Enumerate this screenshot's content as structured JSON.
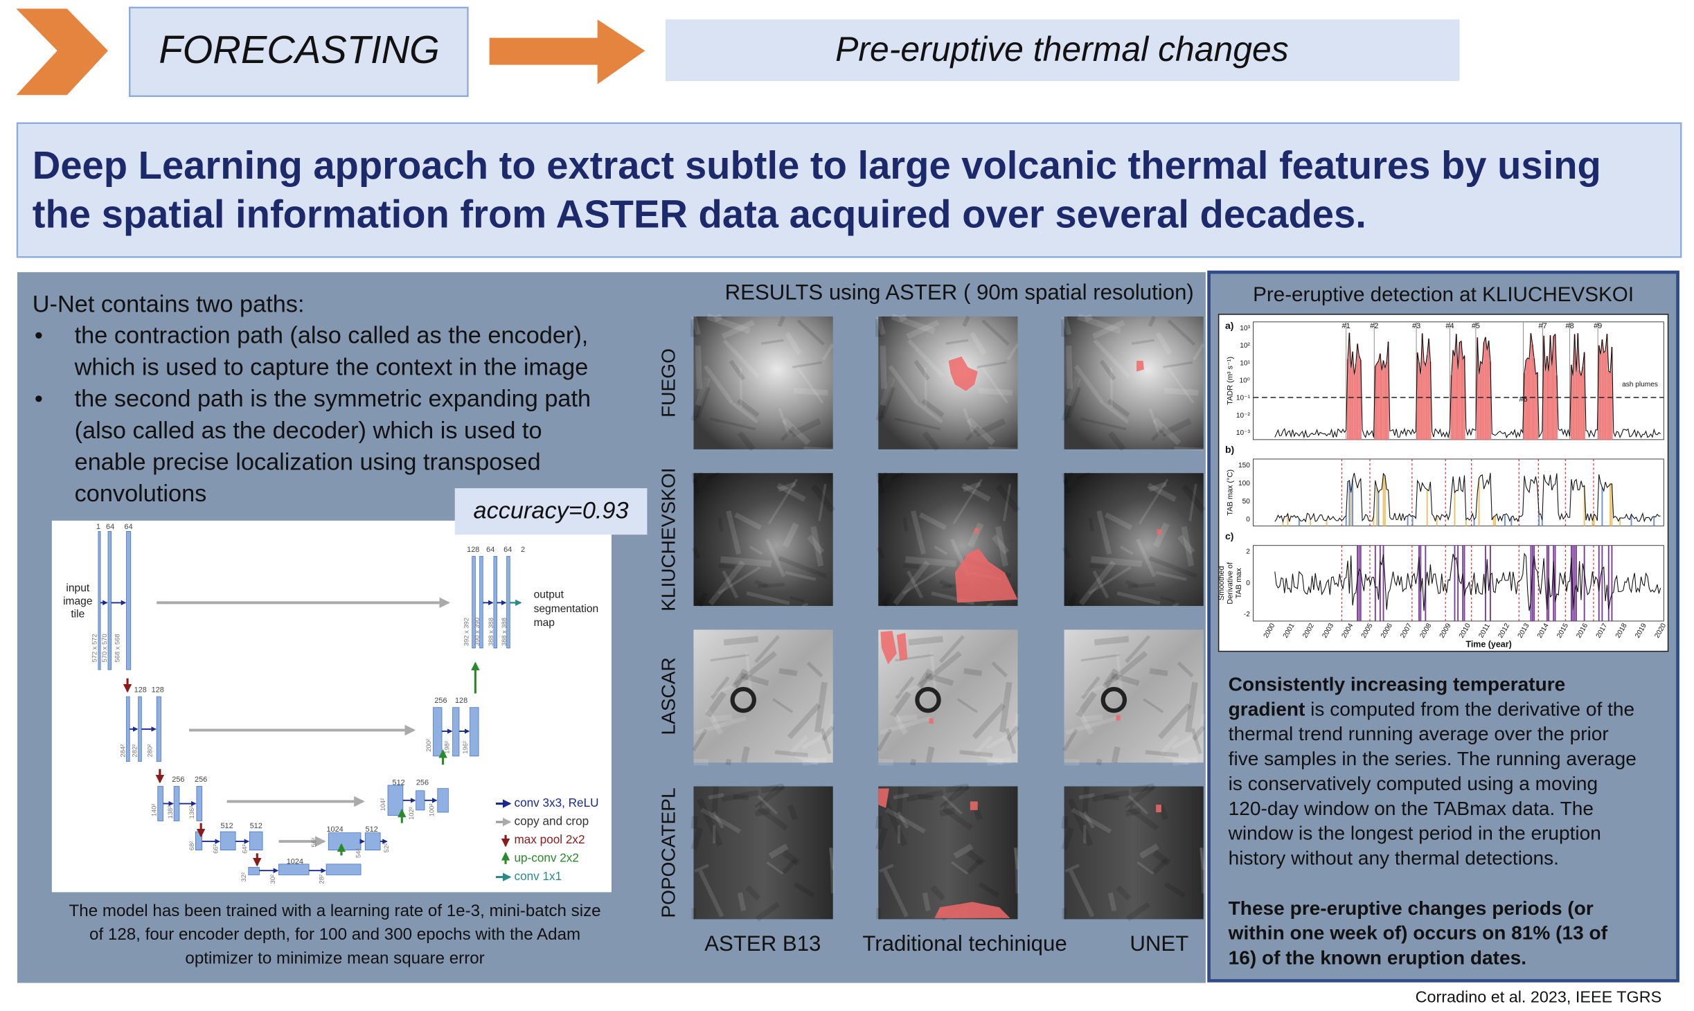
{
  "header": {
    "section": "FORECASTING",
    "topic": "Pre-eruptive thermal changes"
  },
  "title": {
    "lines": [
      "Deep Learning approach to extract subtle to large volcanic thermal features by using",
      "the spatial information from ASTER data acquired over several decades."
    ]
  },
  "unet": {
    "intro": "U-Net contains two paths:",
    "bullet": "•",
    "bullets": [
      [
        "the contraction path (also called as the encoder),",
        "which is used to capture the context in the image"
      ],
      [
        "the second path is the symmetric expanding path",
        "(also called as the decoder) which is used to",
        "enable precise localization using transposed",
        "convolutions"
      ]
    ],
    "accuracy": "accuracy=0.93",
    "diagram": {
      "input": [
        "input",
        "image",
        "tile"
      ],
      "output": [
        "output",
        "segmentation",
        "map"
      ],
      "channels": [
        "1",
        "64",
        "64",
        "128",
        "128",
        "256",
        "256",
        "512",
        "512",
        "1024",
        "1024",
        "512",
        "512",
        "256",
        "256",
        "128",
        "128",
        "64",
        "64",
        "2"
      ],
      "sizes": [
        "572 x 572",
        "570 x 570",
        "568 x 568",
        "284²",
        "282²",
        "280²",
        "140²",
        "138²",
        "136²",
        "68²",
        "66²",
        "64²",
        "32²",
        "30²",
        "28²",
        "56²",
        "54²",
        "52²",
        "104²",
        "102²",
        "100²",
        "200²",
        "198²",
        "196²",
        "392 x 392",
        "390 x 390",
        "388 x 388",
        "388 x 388"
      ],
      "legend": [
        "conv 3x3, ReLU",
        "copy and crop",
        "max pool 2x2",
        "up-conv 2x2",
        "conv 1x1"
      ]
    },
    "caption": [
      "The model has been trained with a learning rate of 1e-3, mini-batch size",
      "of 128, four encoder depth, for 100 and 300 epochs with the Adam",
      "optimizer to minimize mean square error"
    ]
  },
  "results": {
    "heading": "RESULTS using ASTER ( 90m spatial resolution)",
    "rows": [
      "FUEGO",
      "KLIUCHEVSKOI",
      "LASCAR",
      "POPOCATEPL"
    ],
    "columns": [
      "ASTER B13",
      "Traditional techinique",
      "UNET"
    ]
  },
  "detection": {
    "title": "Pre-eruptive detection at KLIUCHEVSKOI",
    "chart": {
      "panels": [
        "a)",
        "b)",
        "c)"
      ],
      "ylabels": [
        [
          "TADR (m³ s⁻¹)"
        ],
        [
          "TAB max (°C)"
        ],
        [
          "Smoothed",
          "Derivative of",
          "TAB max"
        ]
      ],
      "yticks": [
        [
          "10³",
          "10²",
          "10¹",
          "10⁰",
          "10⁻¹",
          "10⁻²",
          "10⁻³"
        ],
        [
          "150",
          "100",
          "50",
          "0"
        ],
        [
          "2",
          "0",
          "-2"
        ]
      ],
      "years": [
        "2000",
        "2001",
        "2002",
        "2003",
        "2004",
        "2005",
        "2006",
        "2007",
        "2008",
        "2009",
        "2010",
        "2011",
        "2012",
        "2013",
        "2014",
        "2015",
        "2016",
        "2017",
        "2018",
        "2019",
        "2020"
      ],
      "xlabel": "Time (year)",
      "events": [
        "#1",
        "#2",
        "#3",
        "#4",
        "#5",
        "#6",
        "#7",
        "#8",
        "#9"
      ],
      "annotation": "ash plumes"
    },
    "paragraph": [
      {
        "bold": "Consistently increasing temperature"
      },
      {
        "bold": "gradient",
        "text": " is computed from the derivative of the"
      },
      {
        "text": "thermal trend running average over the prior"
      },
      {
        "text": "five samples in the series. The running average"
      },
      {
        "text": "is conservatively computed using a moving"
      },
      {
        "text": "120-day window on the TABmax data. The"
      },
      {
        "text": "window is the longest period in the eruption"
      },
      {
        "text": "history without any thermal detections."
      }
    ],
    "conclusion": [
      "These pre-eruptive changes periods (or",
      "within one week of) occurs on  81% (13 of",
      "16) of the known eruption dates."
    ]
  },
  "credit": "Corradino et al. 2023, IEEE TGRS"
}
